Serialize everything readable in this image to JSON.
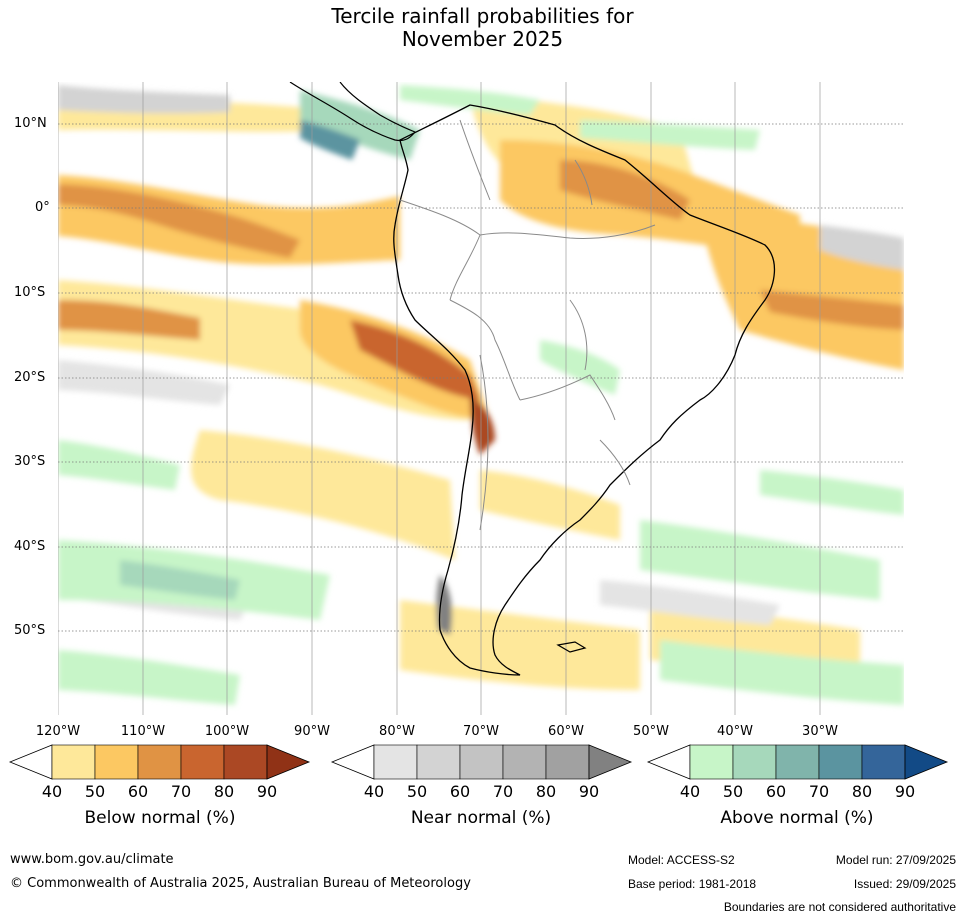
{
  "title": {
    "line1": "Tercile rainfall probabilities for",
    "line2": "November 2025"
  },
  "map": {
    "region": "South America",
    "lat_labels": [
      "10°N",
      "0°",
      "10°S",
      "20°S",
      "30°S",
      "40°S",
      "50°S"
    ],
    "lon_labels": [
      "120°W",
      "110°W",
      "100°W",
      "90°W",
      "80°W",
      "70°W",
      "60°W",
      "50°W",
      "40°W",
      "30°W"
    ],
    "colors": {
      "below": [
        "#ffffff",
        "#fee89a",
        "#fcc862",
        "#e09344",
        "#c9652f",
        "#ab4824",
        "#903216"
      ],
      "near": [
        "#ffffff",
        "#e4e4e4",
        "#d3d3d3",
        "#c3c3c3",
        "#b3b3b3",
        "#a1a1a1",
        "#818181"
      ],
      "above": [
        "#ffffff",
        "#c7f5c8",
        "#a6d8bb",
        "#80b4ab",
        "#5b94a0",
        "#34659a",
        "#124a86"
      ]
    }
  },
  "legend": {
    "ticks": [
      "40",
      "50",
      "60",
      "70",
      "80",
      "90"
    ],
    "below_label": "Below normal (%)",
    "near_label": "Near normal (%)",
    "above_label": "Above normal (%)"
  },
  "footer": {
    "website": "www.bom.gov.au/climate",
    "copyright": "© Commonwealth of Australia 2025, Australian Bureau of Meteorology",
    "model": "Model: ACCESS-S2",
    "model_run": "Model run: 27/09/2025",
    "base_period": "Base period: 1981-2018",
    "issued": "Issued: 29/09/2025",
    "disclaimer": "Boundaries are not considered authoritative"
  }
}
